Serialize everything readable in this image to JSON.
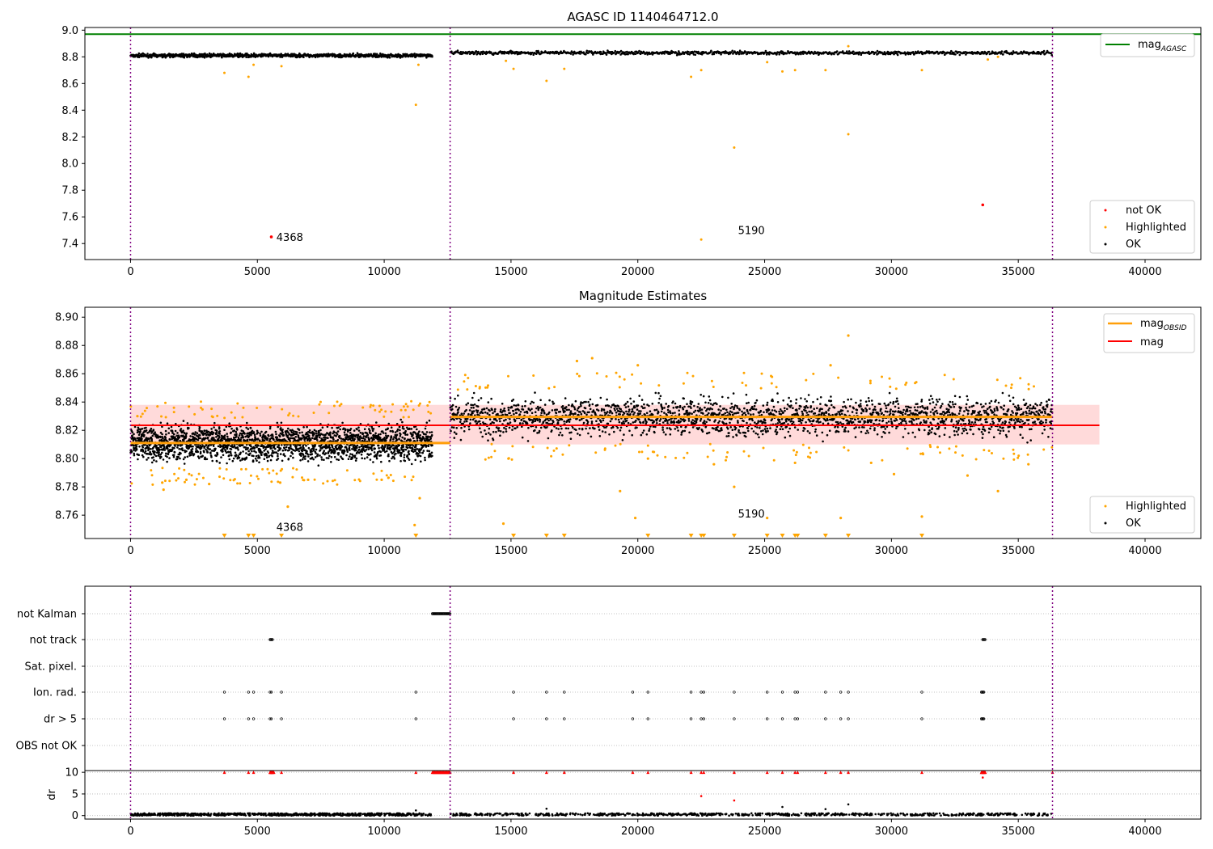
{
  "colors": {
    "ok": "#000000",
    "highlighted": "#ffa500",
    "not_ok": "#ff0000",
    "agasc": "#008000",
    "mag_band": "#ffd6d6",
    "obs_line": "#ff9f0a",
    "mag_line": "#ff0000",
    "separator": "#800080",
    "grid": "#b0b0b0"
  },
  "chart_data": [
    {
      "type": "scatter",
      "title": "AGASC ID 1140464712.0",
      "xlim": [
        -1800,
        42200
      ],
      "ylim": [
        7.28,
        9.02
      ],
      "xticks": [
        0,
        5000,
        10000,
        15000,
        20000,
        25000,
        30000,
        35000,
        40000
      ],
      "xtick_labels": [
        "0",
        "5000",
        "10000",
        "15000",
        "20000",
        "25000",
        "30000",
        "35000",
        "40000"
      ],
      "yticks": [
        7.4,
        7.6,
        7.8,
        8.0,
        8.2,
        8.4,
        8.6,
        8.8,
        9.0
      ],
      "ytick_labels": [
        "7.4",
        "7.6",
        "7.8",
        "8.0",
        "8.2",
        "8.4",
        "8.6",
        "8.8",
        "9.0"
      ],
      "separators_x": [
        0,
        12600,
        36350
      ],
      "hline": {
        "y": 8.97,
        "x": [
          -1800,
          42200
        ],
        "label": "mag",
        "label_sub": "AGASC"
      },
      "legend_upper": "top-right",
      "legend_lower": {
        "position": "bottom-right",
        "entries": [
          "not OK",
          "Highlighted",
          "OK"
        ]
      },
      "annotations": [
        {
          "text": "4368",
          "x": 5750,
          "y": 7.42
        },
        {
          "text": "5190",
          "x": 23950,
          "y": 7.47
        }
      ],
      "ok_bands": [
        {
          "x": [
            0,
            11900
          ],
          "y_center": 8.81,
          "spread": 0.012
        },
        {
          "x": [
            12600,
            36350
          ],
          "y_center": 8.83,
          "spread": 0.012
        }
      ],
      "highlighted_points": [
        [
          3700,
          8.68
        ],
        [
          4650,
          8.65
        ],
        [
          4850,
          8.74
        ],
        [
          5950,
          8.73
        ],
        [
          11250,
          8.44
        ],
        [
          11350,
          8.74
        ],
        [
          14800,
          8.77
        ],
        [
          15100,
          8.71
        ],
        [
          16400,
          8.62
        ],
        [
          17100,
          8.71
        ],
        [
          22100,
          8.65
        ],
        [
          22500,
          8.7
        ],
        [
          23800,
          8.12
        ],
        [
          25100,
          8.76
        ],
        [
          25700,
          8.69
        ],
        [
          26200,
          8.7
        ],
        [
          27400,
          8.7
        ],
        [
          28300,
          8.22
        ],
        [
          31200,
          8.7
        ],
        [
          33800,
          8.78
        ],
        [
          34200,
          8.8
        ],
        [
          22500,
          7.43
        ],
        [
          28300,
          8.88
        ]
      ],
      "not_ok_points": [
        [
          5550,
          7.45
        ],
        [
          33600,
          7.69
        ]
      ]
    },
    {
      "type": "scatter",
      "title": "Magnitude Estimates",
      "xlim": [
        -1800,
        42200
      ],
      "ylim": [
        8.7435,
        8.907
      ],
      "xticks": [
        0,
        5000,
        10000,
        15000,
        20000,
        25000,
        30000,
        35000,
        40000
      ],
      "xtick_labels": [
        "0",
        "5000",
        "10000",
        "15000",
        "20000",
        "25000",
        "30000",
        "35000",
        "40000"
      ],
      "yticks": [
        8.76,
        8.78,
        8.8,
        8.82,
        8.84,
        8.86,
        8.88,
        8.9
      ],
      "ytick_labels": [
        "8.76",
        "8.78",
        "8.80",
        "8.82",
        "8.84",
        "8.86",
        "8.88",
        "8.90"
      ],
      "separators_x": [
        0,
        12600,
        36350
      ],
      "mag_line": {
        "y": 8.8235,
        "x": [
          0,
          38200
        ],
        "band": [
          8.81,
          8.838
        ],
        "label": "mag"
      },
      "obs_lines": [
        {
          "x": [
            0,
            12600
          ],
          "y": 8.811,
          "label": "mag",
          "label_sub": "OBSID"
        },
        {
          "x": [
            12600,
            36350
          ],
          "y": 8.8295
        }
      ],
      "legend_upper": "top-right",
      "legend_lower": {
        "position": "bottom-right",
        "entries": [
          "Highlighted",
          "OK"
        ]
      },
      "annotations": [
        {
          "text": "4368",
          "x": 5750,
          "y": 8.749
        },
        {
          "text": "5190",
          "x": 23950,
          "y": 8.7585
        }
      ],
      "ok_bands": [
        {
          "x": [
            0,
            11900
          ],
          "y_center": 8.811,
          "spread": 0.011
        },
        {
          "x": [
            12600,
            36350
          ],
          "y_center": 8.8295,
          "spread": 0.012
        }
      ],
      "highlighted_points": [
        [
          1300,
          8.778
        ],
        [
          1250,
          8.783
        ],
        [
          2200,
          8.785
        ],
        [
          3100,
          8.782
        ],
        [
          5900,
          8.783
        ],
        [
          6200,
          8.766
        ],
        [
          7000,
          8.785
        ],
        [
          9900,
          8.785
        ],
        [
          11200,
          8.753
        ],
        [
          11400,
          8.772
        ],
        [
          14700,
          8.754
        ],
        [
          14900,
          8.8
        ],
        [
          19300,
          8.777
        ],
        [
          19900,
          8.758
        ],
        [
          20400,
          8.8
        ],
        [
          23000,
          8.796
        ],
        [
          23800,
          8.78
        ],
        [
          25100,
          8.758
        ],
        [
          26200,
          8.797
        ],
        [
          28000,
          8.758
        ],
        [
          28300,
          8.887
        ],
        [
          29200,
          8.797
        ],
        [
          30100,
          8.789
        ],
        [
          31200,
          8.759
        ],
        [
          33000,
          8.788
        ],
        [
          34200,
          8.777
        ],
        [
          35400,
          8.796
        ],
        [
          17600,
          8.869
        ],
        [
          18200,
          8.871
        ],
        [
          20000,
          8.866
        ],
        [
          27600,
          8.866
        ]
      ],
      "triangles_x": [
        3700,
        4650,
        4850,
        5950,
        11250,
        15100,
        16400,
        17100,
        20400,
        22100,
        22500,
        22600,
        23800,
        25100,
        25700,
        26200,
        26300,
        27400,
        28300,
        31200
      ]
    },
    {
      "type": "scatter",
      "title": "",
      "xlim": [
        -1800,
        42200
      ],
      "xticks": [
        0,
        5000,
        10000,
        15000,
        20000,
        25000,
        30000,
        35000,
        40000
      ],
      "xtick_labels": [
        "0",
        "5000",
        "10000",
        "15000",
        "20000",
        "25000",
        "30000",
        "35000",
        "40000"
      ],
      "separators_x": [
        0,
        12600,
        36350
      ],
      "flag_rows": [
        "not Kalman",
        "not track",
        "Sat. pixel.",
        "Ion. rad.",
        "dr > 5",
        "OBS not OK"
      ],
      "flag_points": {
        "not Kalman": {
          "ranges": [
            [
              11900,
              12600
            ]
          ],
          "x": []
        },
        "not track": {
          "ranges": [
            [
              5500,
              5600
            ],
            [
              33600,
              33700
            ]
          ],
          "x": []
        },
        "Sat. pixel.": {
          "ranges": [],
          "x": []
        },
        "Ion. rad.": {
          "ranges": [
            [
              33550,
              33650
            ]
          ],
          "x": [
            3700,
            4650,
            4850,
            5500,
            5550,
            5950,
            11250,
            15100,
            16400,
            17100,
            19800,
            20400,
            22100,
            22500,
            22600,
            23800,
            25100,
            25700,
            26200,
            26300,
            27400,
            28000,
            28300,
            31200
          ]
        },
        "dr > 5": {
          "ranges": [
            [
              33550,
              33650
            ]
          ],
          "x": [
            3700,
            4650,
            4850,
            5500,
            5550,
            5950,
            11250,
            15100,
            16400,
            17100,
            19800,
            20400,
            22100,
            22500,
            22600,
            23800,
            25100,
            25700,
            26200,
            26300,
            27400,
            28000,
            28300,
            31200
          ]
        },
        "OBS not OK": {
          "ranges": [],
          "x": []
        }
      },
      "dr_yticks": [
        0,
        5,
        10
      ],
      "dr_ytick_labels": [
        "0",
        "5",
        "10"
      ],
      "dr_ylabel": "dr",
      "dr_ylim": [
        -0.8,
        10.4
      ],
      "dr_high_x": [
        3700,
        4650,
        4850,
        5500,
        5550,
        5600,
        5950,
        11250,
        15100,
        16400,
        17100,
        19800,
        20400,
        22100,
        22500,
        22600,
        23800,
        25100,
        25700,
        26200,
        26300,
        27400,
        28000,
        28300,
        31200,
        33550,
        33650,
        36350
      ],
      "dr_high_ranges": [
        [
          11900,
          12600
        ],
        [
          5500,
          5650
        ],
        [
          33550,
          33700
        ]
      ],
      "dr_mid_points": [
        [
          22500,
          4.5
        ],
        [
          23800,
          3.5
        ],
        [
          33600,
          8.8
        ],
        [
          16400,
          1.6
        ],
        [
          25700,
          2.0
        ],
        [
          27400,
          1.5
        ],
        [
          28300,
          2.6
        ],
        [
          11250,
          1.2
        ]
      ]
    }
  ]
}
